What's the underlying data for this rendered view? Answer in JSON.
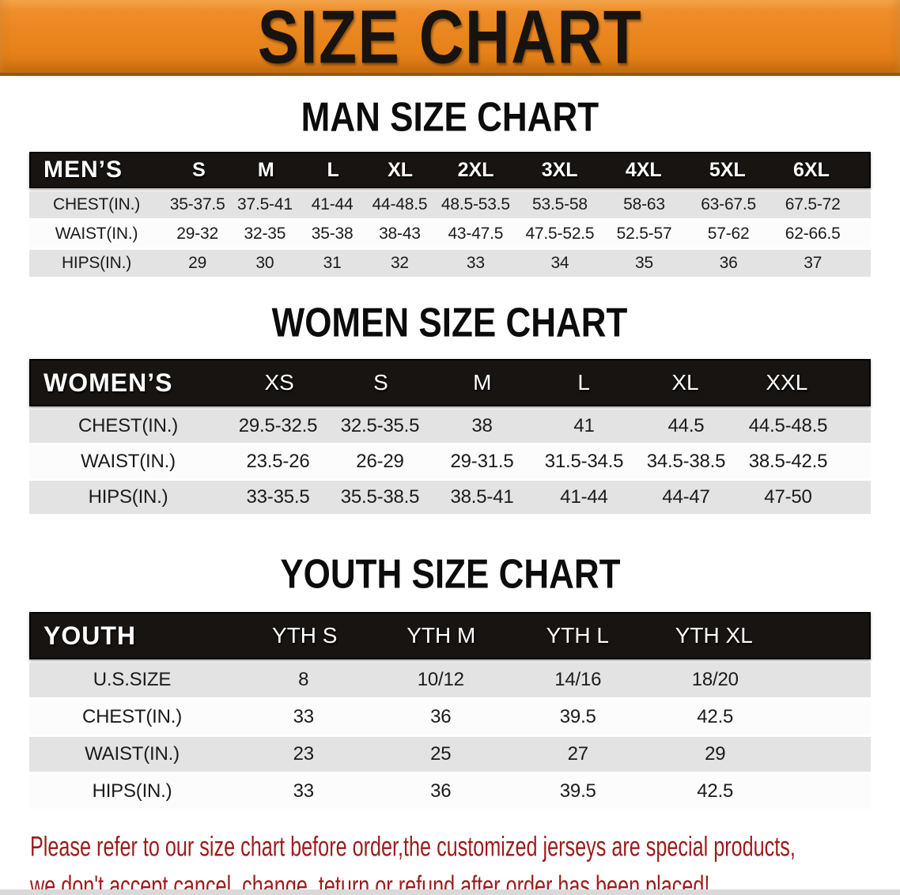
{
  "banner": {
    "title": "SIZE CHART",
    "bg_color": "#EA861F",
    "text_color": "#171310"
  },
  "sections": {
    "men": {
      "heading": "MAN SIZE CHART",
      "header": {
        "label": "MEN’S",
        "sizes": [
          "S",
          "M",
          "L",
          "XL",
          "2XL",
          "3XL",
          "4XL",
          "5XL",
          "6XL"
        ]
      },
      "rows": [
        {
          "label": "CHEST(IN.)",
          "values": [
            "35-37.5",
            "37.5-41",
            "41-44",
            "44-48.5",
            "48.5-53.5",
            "53.5-58",
            "58-63",
            "63-67.5",
            "67.5-72"
          ]
        },
        {
          "label": "WAIST(IN.)",
          "values": [
            "29-32",
            "32-35",
            "35-38",
            "38-43",
            "43-47.5",
            "47.5-52.5",
            "52.5-57",
            "57-62",
            "62-66.5"
          ]
        },
        {
          "label": "HIPS(IN.)",
          "values": [
            "29",
            "30",
            "31",
            "32",
            "33",
            "34",
            "35",
            "36",
            "37"
          ]
        }
      ]
    },
    "women": {
      "heading": "WOMEN SIZE CHART",
      "header": {
        "label": "WOMEN’S",
        "sizes": [
          "XS",
          "S",
          "M",
          "L",
          "XL",
          "XXL"
        ]
      },
      "rows": [
        {
          "label": "CHEST(IN.)",
          "values": [
            "29.5-32.5",
            "32.5-35.5",
            "38",
            "41",
            "44.5",
            "44.5-48.5"
          ]
        },
        {
          "label": "WAIST(IN.)",
          "values": [
            "23.5-26",
            "26-29",
            "29-31.5",
            "31.5-34.5",
            "34.5-38.5",
            "38.5-42.5"
          ]
        },
        {
          "label": "HIPS(IN.)",
          "values": [
            "33-35.5",
            "35.5-38.5",
            "38.5-41",
            "41-44",
            "44-47",
            "47-50"
          ]
        }
      ]
    },
    "youth": {
      "heading": "YOUTH SIZE CHART",
      "header": {
        "label": "YOUTH",
        "sizes": [
          "YTH S",
          "YTH M",
          "YTH L",
          "YTH XL"
        ]
      },
      "rows": [
        {
          "label": "U.S.SIZE",
          "values": [
            "8",
            "10/12",
            "14/16",
            "18/20"
          ]
        },
        {
          "label": "CHEST(IN.)",
          "values": [
            "33",
            "36",
            "39.5",
            "42.5"
          ]
        },
        {
          "label": "WAIST(IN.)",
          "values": [
            "23",
            "25",
            "27",
            "29"
          ]
        },
        {
          "label": "HIPS(IN.)",
          "values": [
            "33",
            "36",
            "39.5",
            "42.5"
          ]
        }
      ]
    }
  },
  "disclaimer": {
    "line1": "Please refer to our size chart before order,the customized jerseys are special products,",
    "line2": "we don't accept cancel, change, teturn or refund after order has been placed!",
    "color": "#9C1B1B"
  },
  "colors": {
    "banner_orange": "#EA861F",
    "table_header_black": "#171412",
    "row_gray": "#E3E3E4",
    "row_white": "#FCFCFC",
    "disclaimer_red": "#9C1B1B"
  }
}
